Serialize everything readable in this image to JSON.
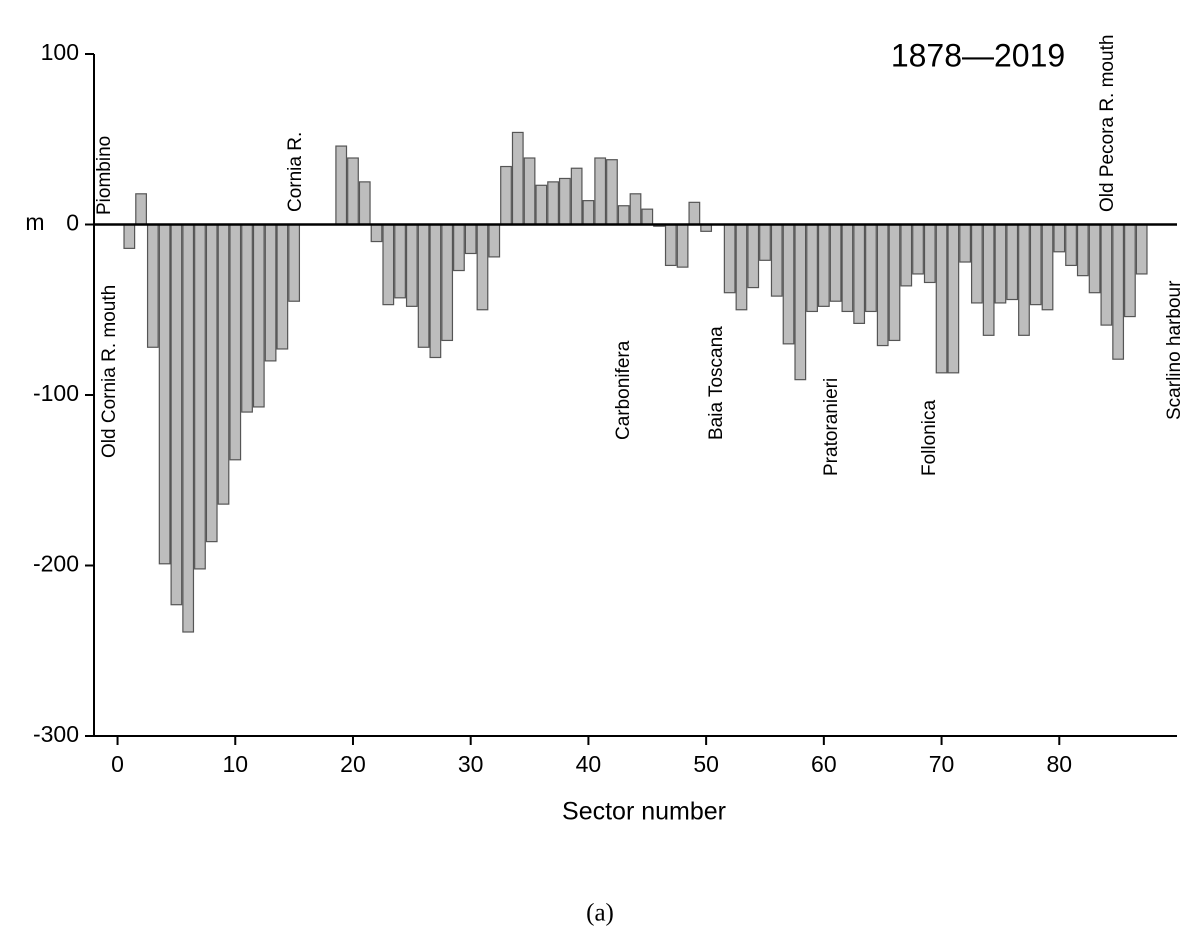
{
  "chart_data": {
    "type": "bar",
    "title": "1878—2019",
    "x_label": "Sector number",
    "y_label": "m",
    "caption": "(a)",
    "color": "#bdbdbd",
    "x": [
      1,
      2,
      3,
      4,
      5,
      6,
      7,
      8,
      9,
      10,
      11,
      12,
      13,
      14,
      15,
      16,
      17,
      18,
      19,
      20,
      21,
      22,
      23,
      24,
      25,
      26,
      27,
      28,
      29,
      30,
      31,
      32,
      33,
      34,
      35,
      36,
      37,
      38,
      39,
      40,
      41,
      42,
      43,
      44,
      45,
      46,
      47,
      48,
      49,
      50,
      51,
      52,
      53,
      54,
      55,
      56,
      57,
      58,
      59,
      60,
      61,
      62,
      63,
      64,
      65,
      66,
      67,
      68,
      69,
      70,
      71,
      72,
      73,
      74,
      75,
      76,
      77,
      78,
      79,
      80,
      81,
      82,
      83,
      84,
      85,
      86,
      87
    ],
    "values": [
      -14,
      18,
      -72,
      -199,
      -223,
      -239,
      -202,
      -186,
      -164,
      -138,
      -110,
      -107,
      -80,
      -73,
      -45,
      null,
      null,
      null,
      46,
      39,
      25,
      -10,
      -47,
      -43,
      -48,
      -72,
      -78,
      -68,
      -27,
      -17,
      -50,
      -19,
      34,
      54,
      39,
      23,
      25,
      27,
      33,
      14,
      39,
      38,
      11,
      18,
      9,
      -1,
      -24,
      -25,
      13,
      -4,
      null,
      -40,
      -50,
      -37,
      -21,
      -42,
      -70,
      -91,
      -51,
      -48,
      -45,
      -51,
      -58,
      -51,
      -71,
      -68,
      -36,
      -29,
      -34,
      -87,
      -87,
      -22,
      -46,
      -65,
      -46,
      -44,
      -65,
      -47,
      -50,
      -16,
      -24,
      -30,
      -40,
      -59,
      -79,
      -54,
      -29
    ],
    "xlim": [
      -2,
      90
    ],
    "ylim": [
      -300,
      100
    ],
    "xticks": [
      0,
      10,
      20,
      30,
      40,
      50,
      60,
      70,
      80
    ],
    "yticks": [
      -300,
      -200,
      -100,
      0,
      100
    ],
    "annotations": [
      "Piombino",
      "Old Cornia R. mouth",
      "Cornia R.",
      "Carbonifera",
      "Baia Toscana",
      "Pratoranieri",
      "Follonica",
      "Old Pecora R. mouth",
      "Scarlino harbour"
    ]
  }
}
